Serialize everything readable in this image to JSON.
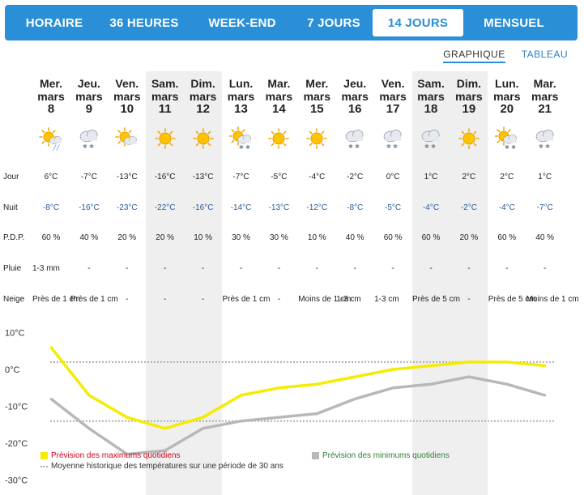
{
  "tabs": [
    {
      "label": "HORAIRE",
      "active": false
    },
    {
      "label": "36 HEURES",
      "active": false
    },
    {
      "label": "WEEK-END",
      "active": false
    },
    {
      "label": "7 JOURS",
      "active": false
    },
    {
      "label": "14 JOURS",
      "active": true
    },
    {
      "label": "MENSUEL",
      "active": false
    }
  ],
  "subnav": {
    "graph_label": "GRAPHIQUE",
    "table_label": "TABLEAU",
    "active": "graph"
  },
  "row_labels": {
    "day": "Jour",
    "night": "Nuit",
    "pop": "P.D.P.",
    "rain": "Pluie",
    "snow": "Neige"
  },
  "days": [
    {
      "dow": "Mer.",
      "month": "mars",
      "num": "8",
      "icon": "sun-rain-icon",
      "day": "6°C",
      "night": "-8°C",
      "pop": "60 %",
      "rain": "1-3 mm",
      "snow": "Près de 1 cm",
      "weekend": false
    },
    {
      "dow": "Jeu.",
      "month": "mars",
      "num": "9",
      "icon": "cloud-snow-icon",
      "day": "-7°C",
      "night": "-16°C",
      "pop": "40 %",
      "rain": "-",
      "snow": "Près de 1 cm",
      "weekend": false
    },
    {
      "dow": "Ven.",
      "month": "mars",
      "num": "10",
      "icon": "sun-cloud-icon",
      "day": "-13°C",
      "night": "-23°C",
      "pop": "20 %",
      "rain": "-",
      "snow": "-",
      "weekend": false
    },
    {
      "dow": "Sam.",
      "month": "mars",
      "num": "11",
      "icon": "sun-icon",
      "day": "-16°C",
      "night": "-22°C",
      "pop": "20 %",
      "rain": "-",
      "snow": "-",
      "weekend": true
    },
    {
      "dow": "Dim.",
      "month": "mars",
      "num": "12",
      "icon": "sun-icon",
      "day": "-13°C",
      "night": "-16°C",
      "pop": "10 %",
      "rain": "-",
      "snow": "-",
      "weekend": true
    },
    {
      "dow": "Lun.",
      "month": "mars",
      "num": "13",
      "icon": "sun-cloud-snow-icon",
      "day": "-7°C",
      "night": "-14°C",
      "pop": "30 %",
      "rain": "-",
      "snow": "Près de 1 cm",
      "weekend": false
    },
    {
      "dow": "Mar.",
      "month": "mars",
      "num": "14",
      "icon": "sun-icon",
      "day": "-5°C",
      "night": "-13°C",
      "pop": "30 %",
      "rain": "-",
      "snow": "-",
      "weekend": false
    },
    {
      "dow": "Mer.",
      "month": "mars",
      "num": "15",
      "icon": "sun-icon",
      "day": "-4°C",
      "night": "-12°C",
      "pop": "10 %",
      "rain": "-",
      "snow": "Moins de 1 cm",
      "weekend": false
    },
    {
      "dow": "Jeu.",
      "month": "mars",
      "num": "16",
      "icon": "cloud-snow-icon",
      "day": "-2°C",
      "night": "-8°C",
      "pop": "40 %",
      "rain": "-",
      "snow": "1-3 cm",
      "weekend": false
    },
    {
      "dow": "Ven.",
      "month": "mars",
      "num": "17",
      "icon": "cloud-snow-icon",
      "day": "0°C",
      "night": "-5°C",
      "pop": "60 %",
      "rain": "-",
      "snow": "1-3 cm",
      "weekend": false
    },
    {
      "dow": "Sam.",
      "month": "mars",
      "num": "18",
      "icon": "cloud-snow-icon",
      "day": "1°C",
      "night": "-4°C",
      "pop": "60 %",
      "rain": "-",
      "snow": "Près de 5 cm",
      "weekend": true
    },
    {
      "dow": "Dim.",
      "month": "mars",
      "num": "19",
      "icon": "sun-icon",
      "day": "2°C",
      "night": "-2°C",
      "pop": "20 %",
      "rain": "-",
      "snow": "-",
      "weekend": true
    },
    {
      "dow": "Lun.",
      "month": "mars",
      "num": "20",
      "icon": "sun-cloud-snow-icon",
      "day": "2°C",
      "night": "-4°C",
      "pop": "60 %",
      "rain": "-",
      "snow": "Près de 5 cm",
      "weekend": false
    },
    {
      "dow": "Mar.",
      "month": "mars",
      "num": "21",
      "icon": "cloud-snow-icon",
      "day": "1°C",
      "night": "-7°C",
      "pop": "40 %",
      "rain": "-",
      "snow": "Moins de 1 cm",
      "weekend": false
    }
  ],
  "chart_data": {
    "type": "line",
    "x": [
      "8",
      "9",
      "10",
      "11",
      "12",
      "13",
      "14",
      "15",
      "16",
      "17",
      "18",
      "19",
      "20",
      "21"
    ],
    "series": [
      {
        "name": "Prévision des maximums quotidiens",
        "values": [
          6,
          -7,
          -13,
          -16,
          -13,
          -7,
          -5,
          -4,
          -2,
          0,
          1,
          2,
          2,
          1
        ],
        "color": "#f5ec00"
      },
      {
        "name": "Prévision des minimums quotidiens",
        "values": [
          -8,
          -16,
          -23,
          -22,
          -16,
          -14,
          -13,
          -12,
          -8,
          -5,
          -4,
          -2,
          -4,
          -7
        ],
        "color": "#b8b8b8"
      }
    ],
    "reference_lines": [
      {
        "name": "Moyenne historique des températures sur une période de 30 ans",
        "values": [
          2,
          -14
        ],
        "color": "#b0b0b0",
        "style": "dotted"
      }
    ],
    "ytick_labels": [
      "10°C",
      "0°C",
      "-10°C",
      "-20°C",
      "-30°C"
    ],
    "yticks": [
      10,
      0,
      -10,
      -20,
      -30
    ],
    "ylim": [
      -30,
      10
    ],
    "legend_colors": {
      "max_label": "#d0021b",
      "min_label": "#2e7d32",
      "avg_label": "#333333"
    }
  },
  "legend": {
    "max_label": "Prévision des maximums quotidiens",
    "min_label": "Prévision des minimums quotidiens",
    "avg_label": "Moyenne historique des températures sur une période de 30 ans"
  }
}
